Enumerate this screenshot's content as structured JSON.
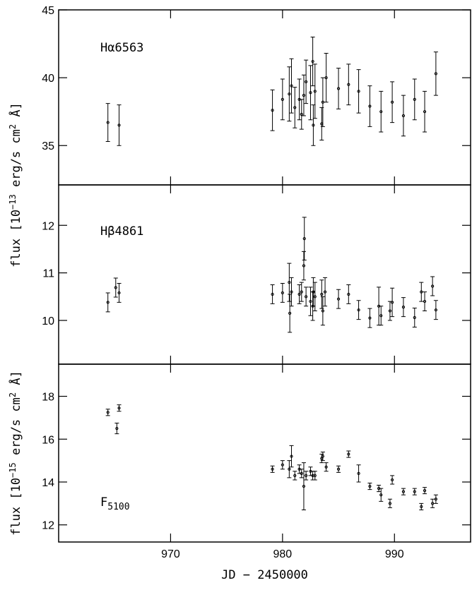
{
  "chart_data": [
    {
      "type": "errorbar",
      "annotation": "Hα6563",
      "ylabel": [
        "flux [10",
        "−13",
        " erg/s cm",
        "2",
        " Å]"
      ],
      "xlim": [
        960,
        996.8
      ],
      "xticks": [
        970,
        980,
        990
      ],
      "ylim": [
        32.1,
        45
      ],
      "yticks": [
        35,
        40,
        45
      ],
      "color": "#000000",
      "x": [
        964.4,
        965.4,
        979.1,
        980.0,
        980.6,
        980.8,
        981.1,
        981.5,
        981.7,
        981.9,
        982.1,
        982.5,
        982.7,
        982.75,
        982.9,
        983.5,
        983.6,
        983.9,
        985.0,
        985.9,
        986.8,
        987.8,
        988.8,
        989.8,
        990.8,
        991.8,
        992.7,
        993.7
      ],
      "values": [
        36.7,
        36.5,
        37.6,
        38.4,
        38.8,
        39.4,
        37.8,
        38.4,
        37.3,
        38.7,
        39.7,
        38.9,
        41.2,
        36.5,
        39.0,
        36.6,
        38.2,
        40.0,
        39.2,
        39.5,
        39.0,
        37.9,
        37.5,
        38.2,
        37.2,
        38.4,
        37.5,
        40.3
      ],
      "errors": [
        1.4,
        1.5,
        1.5,
        1.5,
        2.0,
        2.0,
        1.5,
        1.5,
        1.1,
        1.5,
        1.6,
        2.0,
        1.8,
        1.5,
        2.0,
        1.2,
        1.8,
        1.8,
        1.5,
        1.5,
        1.6,
        1.5,
        1.5,
        1.5,
        1.5,
        1.5,
        1.5,
        1.6
      ]
    },
    {
      "type": "errorbar",
      "annotation": "Hβ4861",
      "xlim": [
        960,
        996.8
      ],
      "xticks": [
        970,
        980,
        990
      ],
      "ylim": [
        9.08,
        12.85
      ],
      "yticks": [
        10,
        11,
        12
      ],
      "color": "#000000",
      "x": [
        964.4,
        965.1,
        965.4,
        979.1,
        980.0,
        980.6,
        980.65,
        980.8,
        981.5,
        981.7,
        981.9,
        981.95,
        982.1,
        982.5,
        982.7,
        982.75,
        982.9,
        983.5,
        983.6,
        983.8,
        985.0,
        985.9,
        986.8,
        987.8,
        988.6,
        988.8,
        989.6,
        989.8,
        990.8,
        991.8,
        992.4,
        992.7,
        993.4,
        993.7
      ],
      "values": [
        10.38,
        10.69,
        10.58,
        10.55,
        10.58,
        10.8,
        10.15,
        10.6,
        10.55,
        10.6,
        11.15,
        11.72,
        10.5,
        10.4,
        10.3,
        10.6,
        10.5,
        10.55,
        10.2,
        10.6,
        10.45,
        10.55,
        10.22,
        10.05,
        10.3,
        10.1,
        10.2,
        10.38,
        10.28,
        10.06,
        10.6,
        10.4,
        10.72,
        10.22
      ],
      "errors": [
        0.2,
        0.2,
        0.2,
        0.2,
        0.2,
        0.4,
        0.4,
        0.3,
        0.2,
        0.2,
        0.3,
        0.45,
        0.2,
        0.3,
        0.3,
        0.3,
        0.3,
        0.3,
        0.3,
        0.3,
        0.2,
        0.2,
        0.2,
        0.2,
        0.4,
        0.2,
        0.2,
        0.3,
        0.2,
        0.2,
        0.2,
        0.2,
        0.2,
        0.2
      ]
    },
    {
      "type": "errorbar",
      "annotation": "F",
      "annotation_subscript": "5100",
      "ylabel": [
        "flux [10",
        "−15",
        " erg/s cm",
        "2",
        " Å]"
      ],
      "xlabel": "JD − 2450000",
      "xlim": [
        960,
        996.8
      ],
      "xticks": [
        970,
        980,
        990
      ],
      "ylim": [
        11.2,
        19.5
      ],
      "yticks": [
        12,
        14,
        16,
        18
      ],
      "color": "#000000",
      "x": [
        964.4,
        965.2,
        965.4,
        979.1,
        980.0,
        980.6,
        980.8,
        981.1,
        981.5,
        981.7,
        981.9,
        982.1,
        982.5,
        982.7,
        982.9,
        983.5,
        983.6,
        983.9,
        985.0,
        985.9,
        986.8,
        987.8,
        988.6,
        988.8,
        989.6,
        989.8,
        990.8,
        991.8,
        992.4,
        992.7,
        993.4,
        993.7
      ],
      "values": [
        17.25,
        16.5,
        17.45,
        14.6,
        14.8,
        14.6,
        15.2,
        14.3,
        14.6,
        14.4,
        13.8,
        14.3,
        14.5,
        14.3,
        14.3,
        15.1,
        15.2,
        14.7,
        14.6,
        15.3,
        14.4,
        13.8,
        13.7,
        13.4,
        13.0,
        14.1,
        13.55,
        13.55,
        12.85,
        13.6,
        13.0,
        13.2
      ],
      "errors": [
        0.15,
        0.25,
        0.15,
        0.15,
        0.2,
        0.4,
        0.5,
        0.2,
        0.2,
        0.2,
        1.1,
        0.2,
        0.2,
        0.2,
        0.2,
        0.2,
        0.2,
        0.2,
        0.15,
        0.15,
        0.4,
        0.15,
        0.15,
        0.3,
        0.2,
        0.2,
        0.15,
        0.15,
        0.15,
        0.15,
        0.2,
        0.2
      ]
    }
  ]
}
